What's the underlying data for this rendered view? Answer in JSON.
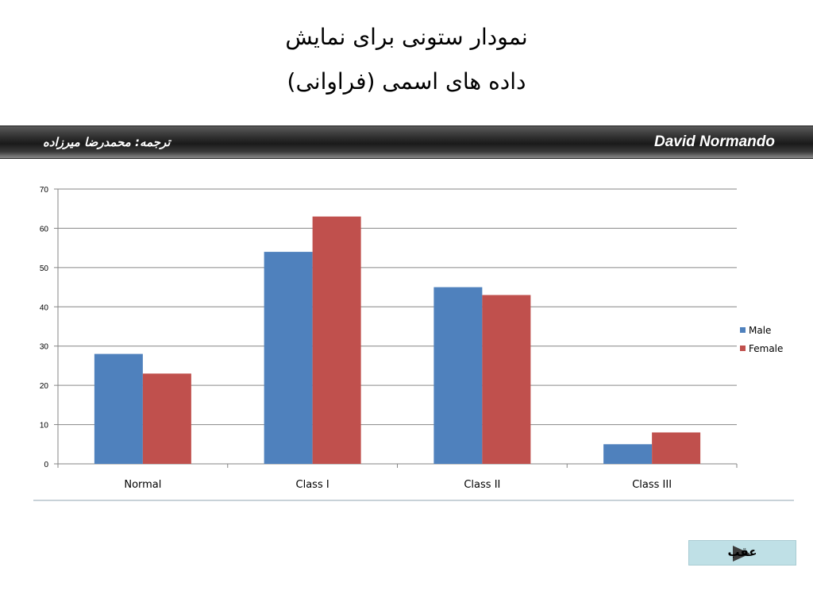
{
  "slide": {
    "title_line1": "نمودار ستونی برای نمایش",
    "title_line2": "داده های اسمی (فراوانی)"
  },
  "banner": {
    "author": "David Normando",
    "translator": "ترجمه: محمدرضا میرزاده",
    "gradient_color": "#2a2a2a"
  },
  "chart_data": {
    "type": "bar",
    "categories": [
      "Normal",
      "Class I",
      "Class II",
      "Class III"
    ],
    "series": [
      {
        "name": "Male",
        "values": [
          28,
          54,
          45,
          5
        ],
        "color": "#4f81bd"
      },
      {
        "name": "Female",
        "values": [
          23,
          63,
          43,
          8
        ],
        "color": "#c0504d"
      }
    ],
    "ylim": [
      0,
      70
    ],
    "yticks": [
      0,
      10,
      20,
      30,
      40,
      50,
      60,
      70
    ],
    "title": "",
    "xlabel": "",
    "ylabel": "",
    "grid": true,
    "legend": "right"
  },
  "nav": {
    "back_label": "عقب"
  }
}
